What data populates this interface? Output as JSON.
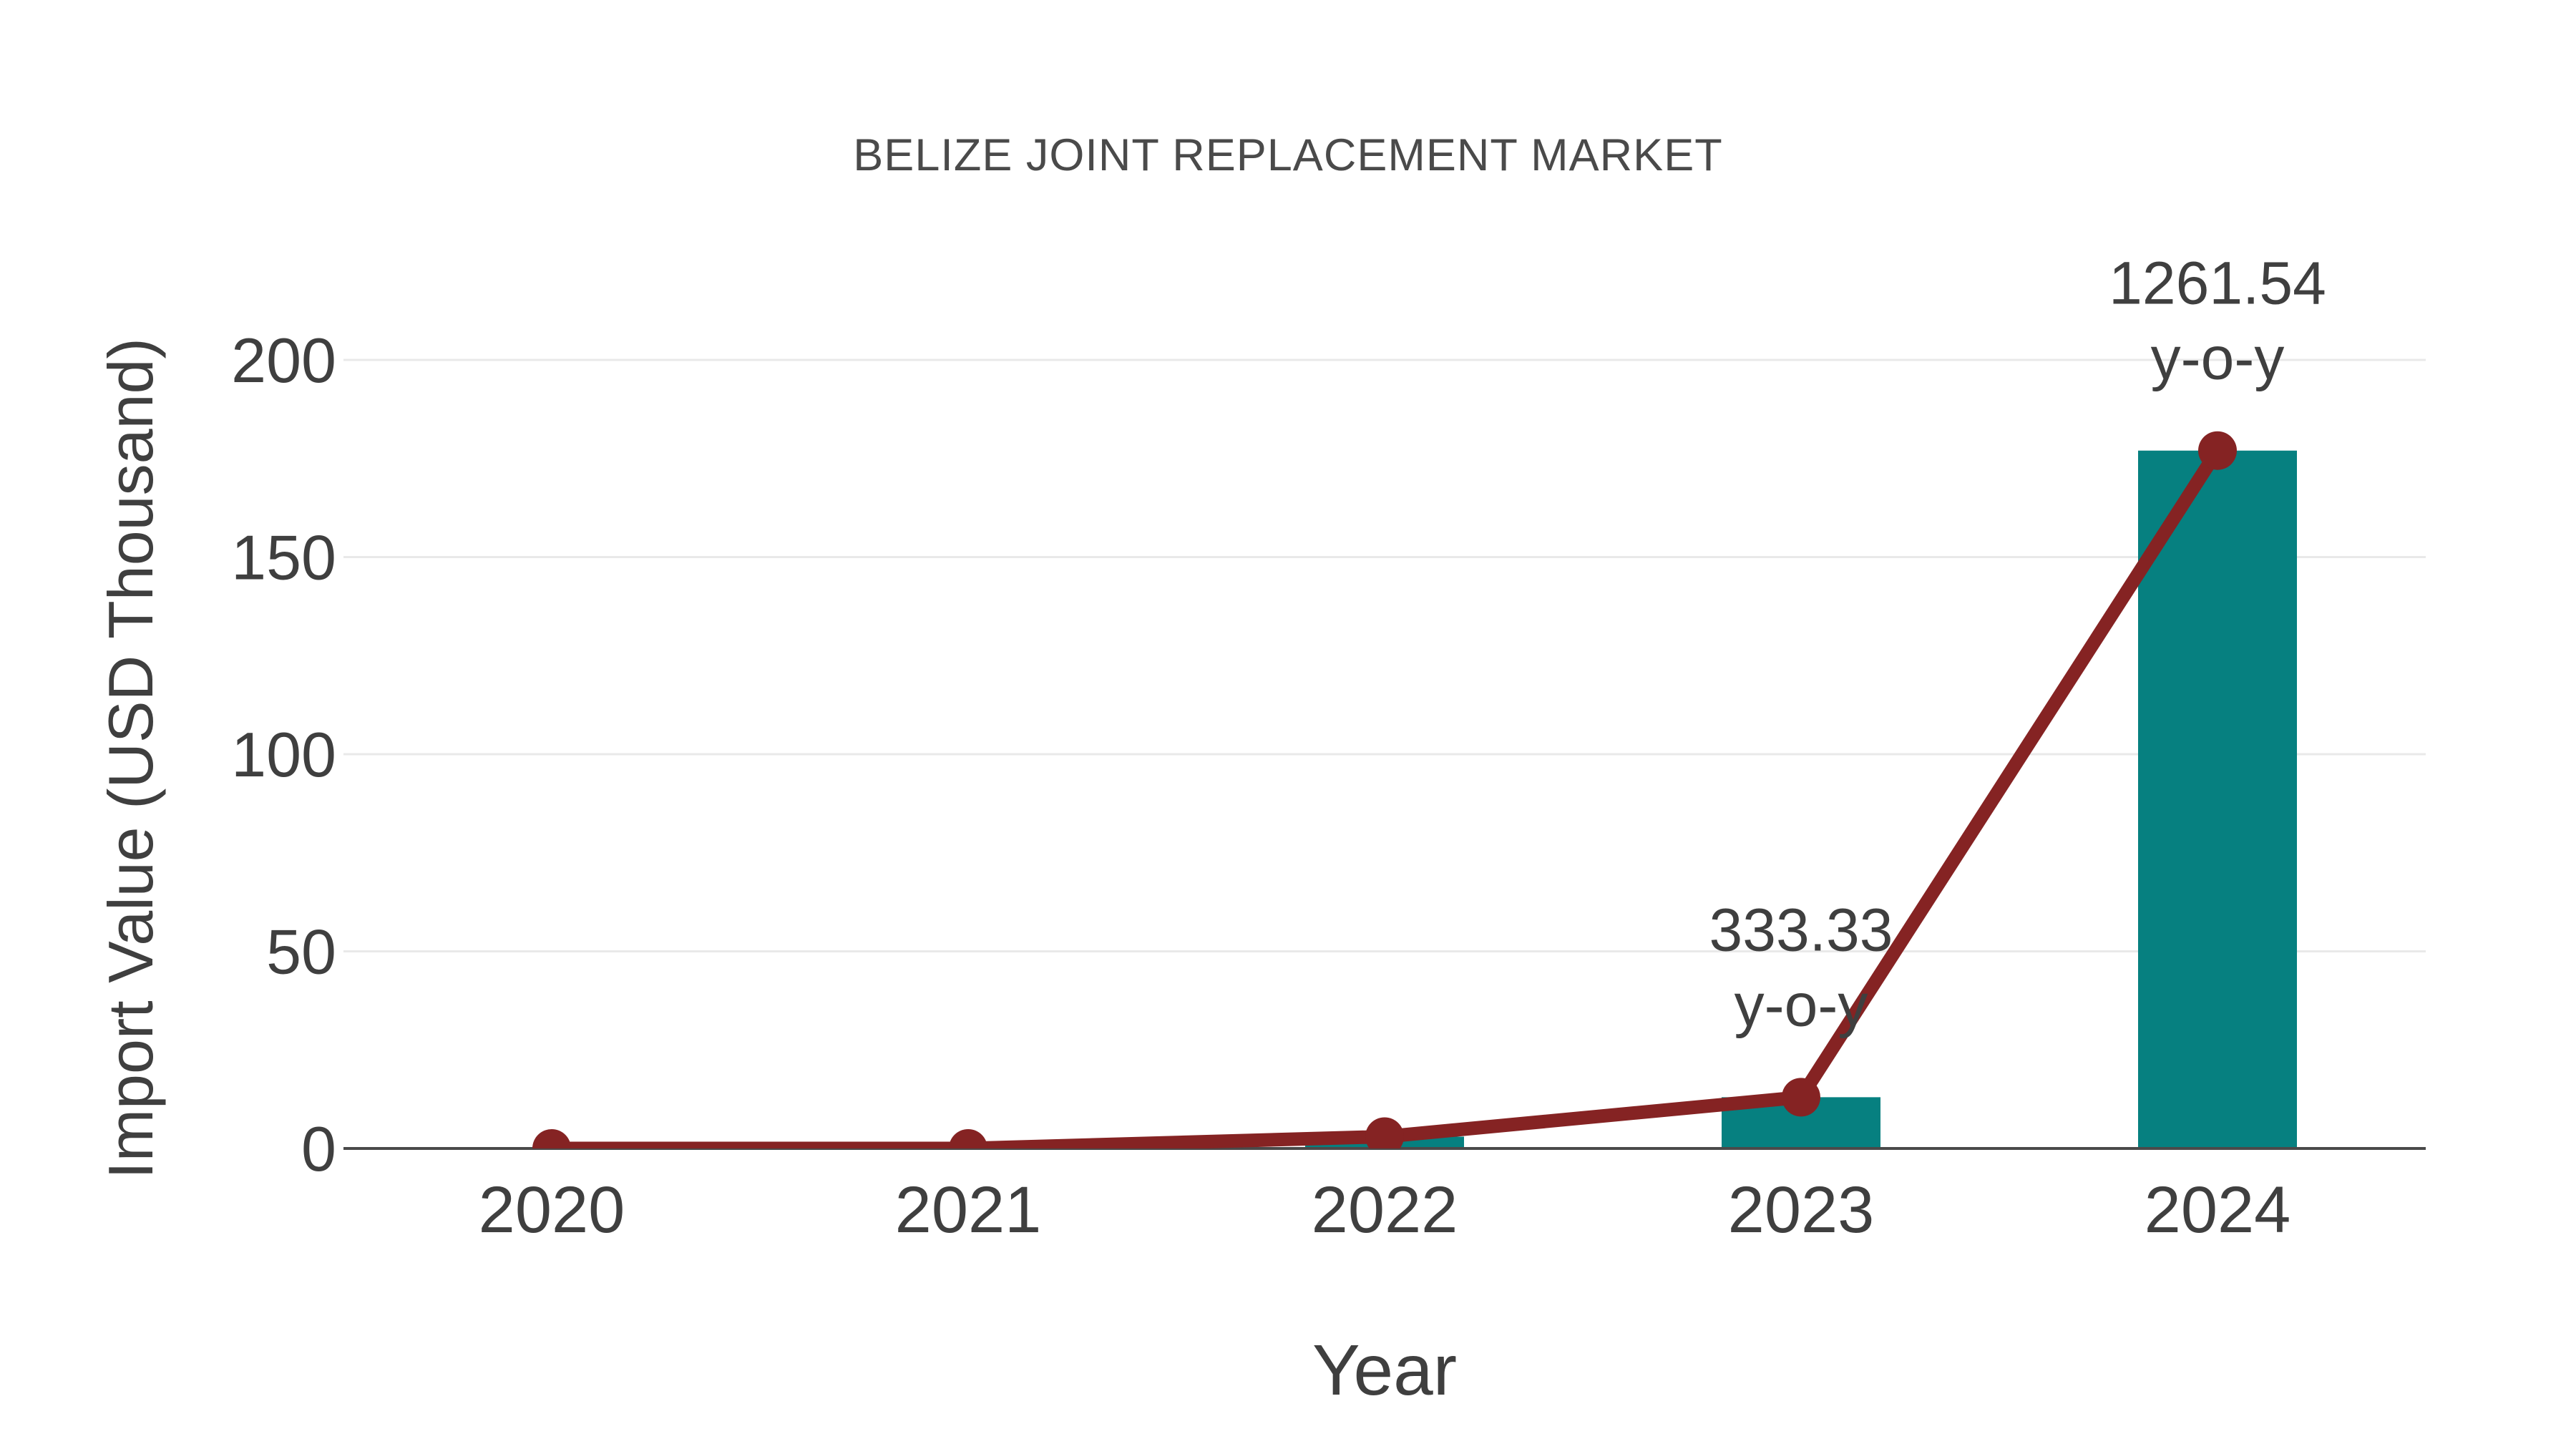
{
  "chart_data": {
    "type": "bar",
    "subtype": "bar+line combo",
    "title": "BELIZE JOINT REPLACEMENT MARKET",
    "xlabel": "Year",
    "ylabel": "Import Value (USD Thousand)",
    "categories": [
      "2020",
      "2021",
      "2022",
      "2023",
      "2024"
    ],
    "series": [
      {
        "name": "Import Value (USD Thousand)",
        "type": "bar",
        "values": [
          0,
          0,
          3,
          13,
          177
        ]
      },
      {
        "name": "Import Value trend line",
        "type": "line",
        "values": [
          0,
          0,
          3,
          13,
          177
        ]
      }
    ],
    "annotations": [
      {
        "category": "2023",
        "text_lines": [
          "333.33",
          "y-o-y"
        ]
      },
      {
        "category": "2024",
        "text_lines": [
          "1261.54",
          "y-o-y"
        ]
      }
    ],
    "ylim": [
      0,
      200
    ],
    "yticks": [
      0,
      50,
      100,
      150,
      200
    ],
    "grid": "horizontal",
    "legend_position": "none"
  },
  "style": {
    "bar_color": "#068080",
    "line_color": "#852323",
    "marker_color": "#852323",
    "grid_color": "#e9e9e9",
    "zero_line_color": "#4a4a4a",
    "tick_text_color": "#3f3f3f",
    "title_color": "#4a4a4a",
    "annotation_text_color": "#3f3f3f",
    "background_color": "#ffffff"
  }
}
